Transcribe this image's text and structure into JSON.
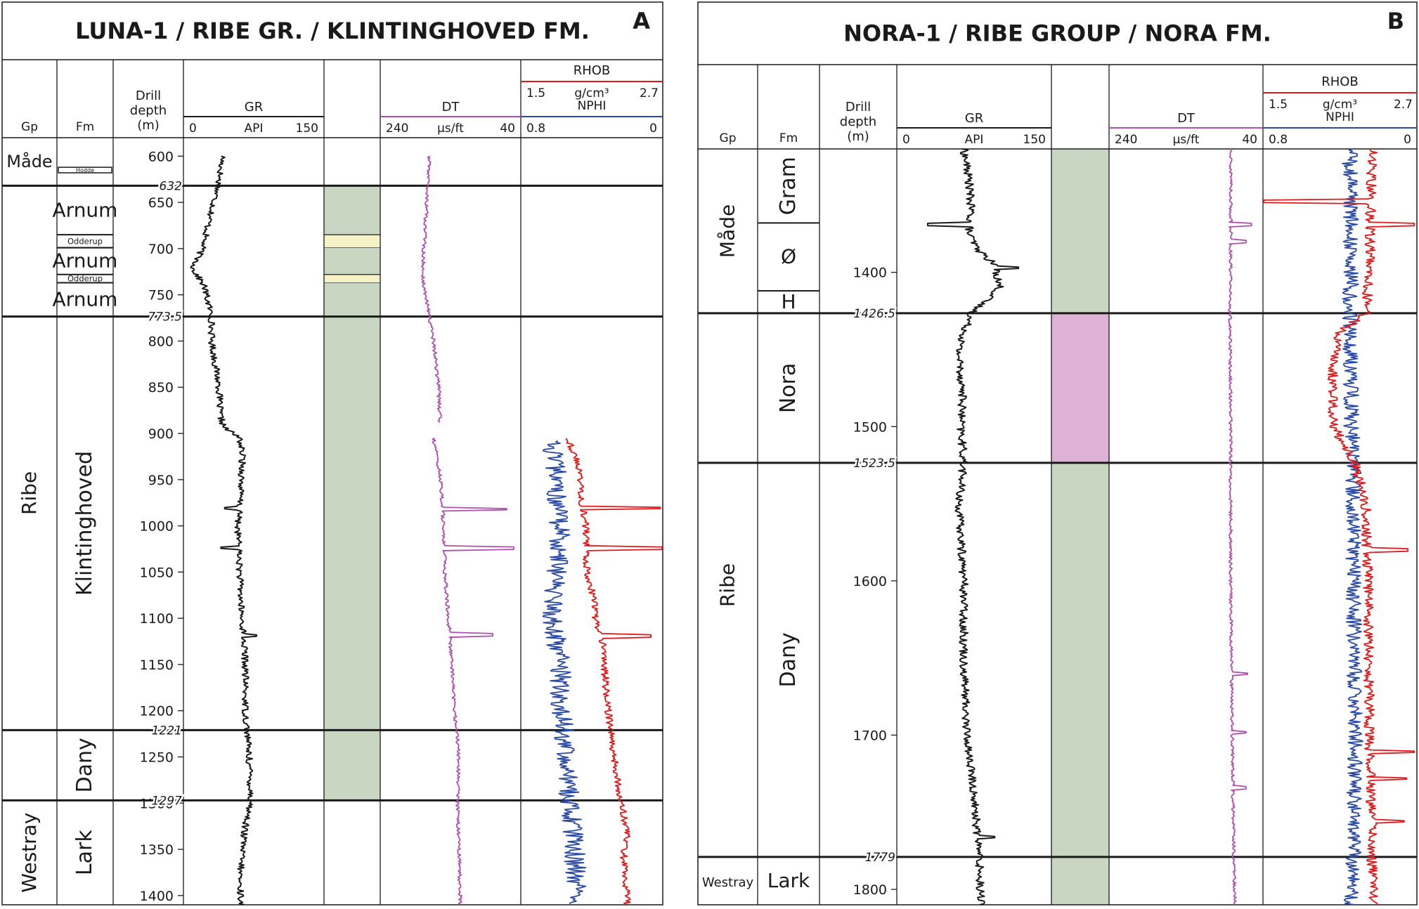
{
  "panels": [
    {
      "letter": "A",
      "title": "LUNA-1 / RIBE GR. / KLINTINGHOVED FM.",
      "headers": {
        "gp": "Gp",
        "fm": "Fm",
        "depth": [
          "Drill",
          "depth",
          "(m)"
        ]
      },
      "gr": {
        "title": "GR",
        "unit": "API",
        "min": "0",
        "max": "150"
      },
      "dt": {
        "title": "DT",
        "unit": "µs/ft",
        "left": "240",
        "right": "40"
      },
      "rhob": {
        "title": "RHOB",
        "unit": "g/cm³",
        "left": "1.5",
        "right": "2.7"
      },
      "nphi": {
        "title": "NPHI",
        "left": "0.8",
        "right": "0"
      },
      "depth_range": [
        580,
        1410
      ],
      "depth_ticks": [
        600,
        650,
        700,
        750,
        800,
        850,
        900,
        950,
        1000,
        1050,
        1100,
        1150,
        1200,
        1250,
        1300,
        1350,
        1400
      ],
      "boundary_labels": [
        {
          "d": 632,
          "t": "632"
        },
        {
          "d": 773.5,
          "t": "773.5"
        },
        {
          "d": 1221,
          "t": "1221"
        },
        {
          "d": 1297,
          "t": "1297"
        }
      ],
      "groups": [
        {
          "name": "Måde",
          "top": 580,
          "bottom": 632
        },
        {
          "name": "Ribe",
          "top": 632,
          "bottom": 1297
        },
        {
          "name": "Westray",
          "top": 1297,
          "bottom": 1410
        }
      ],
      "formations": [
        {
          "name": "Hodde",
          "top": 612,
          "bottom": 618,
          "size": "tiny"
        },
        {
          "name": "Arnum",
          "top": 632,
          "bottom": 685
        },
        {
          "name": "Odderup",
          "top": 685,
          "bottom": 699,
          "size": "small"
        },
        {
          "name": "Arnum",
          "top": 699,
          "bottom": 728
        },
        {
          "name": "Odderup",
          "top": 728,
          "bottom": 737,
          "size": "small"
        },
        {
          "name": "Arnum",
          "top": 737,
          "bottom": 773.5
        },
        {
          "name": "Klintinghoved",
          "top": 773.5,
          "bottom": 1221
        },
        {
          "name": "Dany",
          "top": 1221,
          "bottom": 1297
        },
        {
          "name": "Lark",
          "top": 1297,
          "bottom": 1410
        }
      ],
      "lith": [
        {
          "top": 632,
          "bottom": 685,
          "color": "#c9d6c2"
        },
        {
          "top": 685,
          "bottom": 699,
          "color": "#f6f2c6"
        },
        {
          "top": 699,
          "bottom": 728,
          "color": "#c9d6c2"
        },
        {
          "top": 728,
          "bottom": 737,
          "color": "#f6f2c6"
        },
        {
          "top": 737,
          "bottom": 1297,
          "color": "#c9d6c2"
        }
      ],
      "chart_data": {
        "type": "line",
        "y_axis": "Drill depth (m)",
        "ylim": [
          580,
          1410
        ],
        "series": [
          {
            "name": "GR",
            "unit": "API",
            "xlim": [
              0,
              150
            ],
            "color": "#1a1a1a",
            "start": 600,
            "end": 1410,
            "profile": [
              [
                600,
                42
              ],
              [
                632,
                37
              ],
              [
                660,
                30
              ],
              [
                700,
                20
              ],
              [
                722,
                10
              ],
              [
                740,
                22
              ],
              [
                773.5,
                30
              ],
              [
                800,
                30
              ],
              [
                850,
                38
              ],
              [
                880,
                39
              ],
              [
                893,
                43
              ],
              [
                905,
                60
              ],
              [
                925,
                63
              ],
              [
                950,
                62
              ],
              [
                975,
                60
              ],
              [
                1000,
                58
              ],
              [
                1050,
                60
              ],
              [
                1100,
                62
              ],
              [
                1115,
                64
              ],
              [
                1150,
                66
              ],
              [
                1200,
                66
              ],
              [
                1221,
                68
              ],
              [
                1250,
                70
              ],
              [
                1297,
                72
              ],
              [
                1330,
                65
              ],
              [
                1360,
                62
              ],
              [
                1385,
                60
              ],
              [
                1410,
                62
              ]
            ],
            "noise": 3.5,
            "spikes": [
              [
                981,
                44
              ],
              [
                1024,
                40
              ],
              [
                1119,
                78
              ]
            ]
          },
          {
            "name": "DT",
            "unit": "µs/ft",
            "xlim": [
              240,
              40
            ],
            "color": "#b04fb0",
            "segments": [
              [
                600,
                888
              ],
              [
                905,
                1410
              ]
            ],
            "profile": [
              [
                600,
                170
              ],
              [
                632,
                172
              ],
              [
                700,
                178
              ],
              [
                730,
                180
              ],
              [
                773.5,
                170
              ],
              [
                800,
                164
              ],
              [
                850,
                157
              ],
              [
                888,
                155
              ],
              [
                905,
                164
              ],
              [
                950,
                154
              ],
              [
                1000,
                150
              ],
              [
                1050,
                148
              ],
              [
                1100,
                143
              ],
              [
                1150,
                138
              ],
              [
                1200,
                134
              ],
              [
                1250,
                128
              ],
              [
                1297,
                130
              ],
              [
                1350,
                128
              ],
              [
                1410,
                126
              ]
            ],
            "noise": 2.5,
            "spikes": [
              [
                982,
                60
              ],
              [
                1024,
                50
              ],
              [
                1118,
                80
              ]
            ]
          },
          {
            "name": "RHOB",
            "unit": "g/cm³",
            "xlim": [
              1.5,
              2.7
            ],
            "color": "#e0191b",
            "start": 905,
            "end": 1410,
            "profile": [
              [
                905,
                1.9
              ],
              [
                940,
                2.0
              ],
              [
                980,
                2.02
              ],
              [
                1000,
                2.05
              ],
              [
                1050,
                2.06
              ],
              [
                1080,
                2.12
              ],
              [
                1110,
                2.14
              ],
              [
                1130,
                2.2
              ],
              [
                1180,
                2.22
              ],
              [
                1220,
                2.26
              ],
              [
                1260,
                2.3
              ],
              [
                1297,
                2.34
              ],
              [
                1330,
                2.4
              ],
              [
                1360,
                2.37
              ],
              [
                1410,
                2.4
              ]
            ],
            "noise": 0.03,
            "spikes": [
              [
                981,
                2.68
              ],
              [
                1024,
                2.7
              ],
              [
                1119,
                2.6
              ]
            ]
          },
          {
            "name": "NPHI",
            "xlim": [
              0.8,
              0
            ],
            "color": "#2a4aa8",
            "start": 908,
            "end": 1410,
            "profile": [
              [
                908,
                0.62
              ],
              [
                950,
                0.6
              ],
              [
                1000,
                0.58
              ],
              [
                1050,
                0.6
              ],
              [
                1100,
                0.62
              ],
              [
                1150,
                0.58
              ],
              [
                1200,
                0.57
              ],
              [
                1250,
                0.55
              ],
              [
                1297,
                0.52
              ],
              [
                1350,
                0.5
              ],
              [
                1410,
                0.48
              ]
            ],
            "noise": 0.06,
            "spikes": []
          }
        ]
      }
    },
    {
      "letter": "B",
      "title": "NORA-1 / RIBE GROUP / NORA FM.",
      "headers": {
        "gp": "Gp",
        "fm": "Fm",
        "depth": [
          "Drill",
          "depth",
          "(m)"
        ]
      },
      "gr": {
        "title": "GR",
        "unit": "API",
        "min": "0",
        "max": "150"
      },
      "dt": {
        "title": "DT",
        "unit": "µs/ft",
        "left": "240",
        "right": "40"
      },
      "rhob": {
        "title": "RHOB",
        "unit": "g/cm³",
        "left": "1.5",
        "right": "2.7"
      },
      "nphi": {
        "title": "NPHI",
        "left": "0.8",
        "right": "0"
      },
      "depth_range": [
        1320,
        1810
      ],
      "depth_ticks": [
        1400,
        1500,
        1600,
        1700,
        1800
      ],
      "boundary_labels": [
        {
          "d": 1426.5,
          "t": "1426.5"
        },
        {
          "d": 1523.5,
          "t": "1523.5"
        },
        {
          "d": 1779,
          "t": "1779"
        }
      ],
      "groups": [
        {
          "name": "Måde",
          "top": 1320,
          "bottom": 1426.5
        },
        {
          "name": "Ribe",
          "top": 1426.5,
          "bottom": 1779
        },
        {
          "name": "Westray",
          "top": 1779,
          "bottom": 1810,
          "horizontal": true
        }
      ],
      "formations": [
        {
          "name": "Gram",
          "top": 1320,
          "bottom": 1368
        },
        {
          "name": "Ø",
          "top": 1368,
          "bottom": 1412,
          "horizontal": true
        },
        {
          "name": "H",
          "top": 1412,
          "bottom": 1426.5,
          "horizontal": true
        },
        {
          "name": "Nora",
          "top": 1426.5,
          "bottom": 1523.5
        },
        {
          "name": "Dany",
          "top": 1523.5,
          "bottom": 1779
        },
        {
          "name": "Lark",
          "top": 1779,
          "bottom": 1810,
          "horizontal": true
        }
      ],
      "lith": [
        {
          "top": 1320,
          "bottom": 1426.5,
          "color": "#c9d6c2"
        },
        {
          "top": 1426.5,
          "bottom": 1523.5,
          "color": "#ddb2d6"
        },
        {
          "top": 1523.5,
          "bottom": 1810,
          "color": "#c9d6c2"
        }
      ],
      "chart_data": {
        "type": "line",
        "y_axis": "Drill depth (m)",
        "ylim": [
          1320,
          1810
        ],
        "series": [
          {
            "name": "GR",
            "unit": "API",
            "xlim": [
              0,
              150
            ],
            "color": "#1a1a1a",
            "start": 1320,
            "end": 1810,
            "profile": [
              [
                1320,
                65
              ],
              [
                1340,
                70
              ],
              [
                1360,
                72
              ],
              [
                1375,
                70
              ],
              [
                1385,
                78
              ],
              [
                1395,
                95
              ],
              [
                1410,
                100
              ],
              [
                1426.5,
                72
              ],
              [
                1450,
                60
              ],
              [
                1480,
                64
              ],
              [
                1500,
                62
              ],
              [
                1523.5,
                65
              ],
              [
                1550,
                60
              ],
              [
                1600,
                65
              ],
              [
                1650,
                65
              ],
              [
                1700,
                68
              ],
              [
                1740,
                75
              ],
              [
                1779,
                80
              ],
              [
                1810,
                82
              ]
            ],
            "noise": 4,
            "spikes": [
              [
                1369,
                30
              ],
              [
                1397,
                118
              ],
              [
                1766,
                95
              ]
            ]
          },
          {
            "name": "DT",
            "unit": "µs/ft",
            "xlim": [
              240,
              40
            ],
            "color": "#b04fb0",
            "start": 1320,
            "end": 1810,
            "profile": [
              [
                1320,
                82
              ],
              [
                1400,
                82
              ],
              [
                1426.5,
                83
              ],
              [
                1500,
                82
              ],
              [
                1523.5,
                82
              ],
              [
                1600,
                82
              ],
              [
                1700,
                80
              ],
              [
                1779,
                78
              ],
              [
                1810,
                76
              ]
            ],
            "noise": 2,
            "spikes": [
              [
                1369,
                55
              ],
              [
                1380,
                62
              ],
              [
                1660,
                60
              ],
              [
                1698,
                62
              ],
              [
                1734,
                62
              ]
            ]
          },
          {
            "name": "RHOB",
            "unit": "g/cm³",
            "xlim": [
              1.5,
              2.7
            ],
            "color": "#e0191b",
            "start": 1320,
            "end": 1810,
            "profile": [
              [
                1320,
                2.35
              ],
              [
                1400,
                2.33
              ],
              [
                1426.5,
                2.3
              ],
              [
                1440,
                2.08
              ],
              [
                1470,
                2.04
              ],
              [
                1500,
                2.05
              ],
              [
                1523.5,
                2.22
              ],
              [
                1550,
                2.3
              ],
              [
                1600,
                2.32
              ],
              [
                1700,
                2.33
              ],
              [
                1779,
                2.35
              ],
              [
                1810,
                2.36
              ]
            ],
            "noise": 0.04,
            "spikes": [
              [
                1354,
                1.5
              ],
              [
                1369,
                2.68
              ],
              [
                1580,
                2.63
              ],
              [
                1711,
                2.68
              ],
              [
                1728,
                2.62
              ],
              [
                1756,
                2.6
              ]
            ]
          },
          {
            "name": "NPHI",
            "xlim": [
              0.8,
              0
            ],
            "color": "#2a4aa8",
            "start": 1320,
            "end": 1810,
            "profile": [
              [
                1320,
                0.35
              ],
              [
                1400,
                0.34
              ],
              [
                1426.5,
                0.35
              ],
              [
                1500,
                0.34
              ],
              [
                1523.5,
                0.33
              ],
              [
                1600,
                0.33
              ],
              [
                1700,
                0.32
              ],
              [
                1779,
                0.33
              ],
              [
                1810,
                0.34
              ]
            ],
            "noise": 0.04,
            "spikes": []
          }
        ]
      }
    }
  ]
}
